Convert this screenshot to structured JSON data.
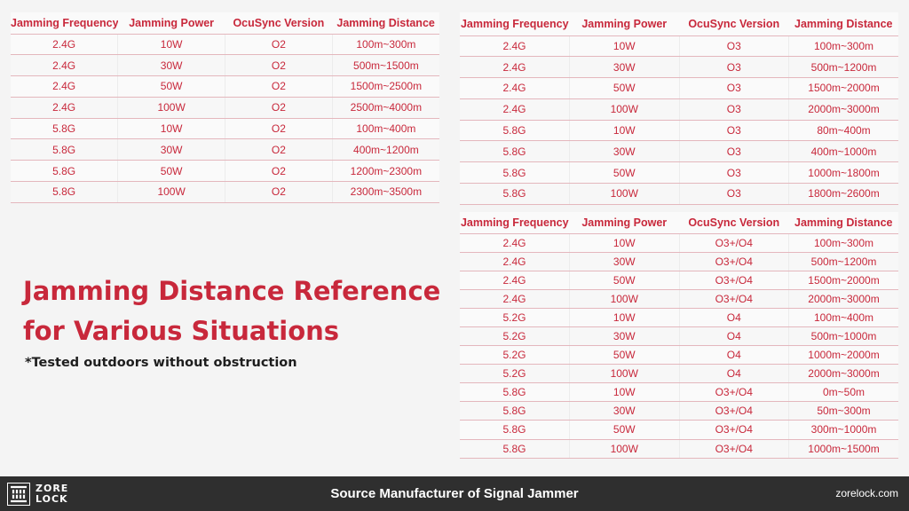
{
  "headers": [
    "Jamming Frequency",
    "Jamming Power",
    "OcuSync Version",
    "Jamming Distance"
  ],
  "table_o2": [
    [
      "2.4G",
      "10W",
      "O2",
      "100m~300m"
    ],
    [
      "2.4G",
      "30W",
      "O2",
      "500m~1500m"
    ],
    [
      "2.4G",
      "50W",
      "O2",
      "1500m~2500m"
    ],
    [
      "2.4G",
      "100W",
      "O2",
      "2500m~4000m"
    ],
    [
      "5.8G",
      "10W",
      "O2",
      "100m~400m"
    ],
    [
      "5.8G",
      "30W",
      "O2",
      "400m~1200m"
    ],
    [
      "5.8G",
      "50W",
      "O2",
      "1200m~2300m"
    ],
    [
      "5.8G",
      "100W",
      "O2",
      "2300m~3500m"
    ]
  ],
  "table_o3": [
    [
      "2.4G",
      "10W",
      "O3",
      "100m~300m"
    ],
    [
      "2.4G",
      "30W",
      "O3",
      "500m~1200m"
    ],
    [
      "2.4G",
      "50W",
      "O3",
      "1500m~2000m"
    ],
    [
      "2.4G",
      "100W",
      "O3",
      "2000m~3000m"
    ],
    [
      "5.8G",
      "10W",
      "O3",
      "80m~400m"
    ],
    [
      "5.8G",
      "30W",
      "O3",
      "400m~1000m"
    ],
    [
      "5.8G",
      "50W",
      "O3",
      "1000m~1800m"
    ],
    [
      "5.8G",
      "100W",
      "O3",
      "1800m~2600m"
    ]
  ],
  "table_o4": [
    [
      "2.4G",
      "10W",
      "O3+/O4",
      "100m~300m"
    ],
    [
      "2.4G",
      "30W",
      "O3+/O4",
      "500m~1200m"
    ],
    [
      "2.4G",
      "50W",
      "O3+/O4",
      "1500m~2000m"
    ],
    [
      "2.4G",
      "100W",
      "O3+/O4",
      "2000m~3000m"
    ],
    [
      "5.2G",
      "10W",
      "O4",
      "100m~400m"
    ],
    [
      "5.2G",
      "30W",
      "O4",
      "500m~1000m"
    ],
    [
      "5.2G",
      "50W",
      "O4",
      "1000m~2000m"
    ],
    [
      "5.2G",
      "100W",
      "O4",
      "2000m~3000m"
    ],
    [
      "5.8G",
      "10W",
      "O3+/O4",
      "0m~50m"
    ],
    [
      "5.8G",
      "30W",
      "O3+/O4",
      "50m~300m"
    ],
    [
      "5.8G",
      "50W",
      "O3+/O4",
      "300m~1000m"
    ],
    [
      "5.8G",
      "100W",
      "O3+/O4",
      "1000m~1500m"
    ]
  ],
  "heading": {
    "line1": "Jamming Distance Reference",
    "line2": "for Various Situations"
  },
  "note": "*Tested outdoors without obstruction",
  "footer": {
    "logo_line1": "ZORE",
    "logo_line2": "LOCK",
    "title": "Source Manufacturer of Signal Jammer",
    "site": "zorelock.com"
  },
  "colors": {
    "accent": "#c8283b",
    "footer_bg": "#2f2f2f",
    "background": "#f4f4f4"
  }
}
